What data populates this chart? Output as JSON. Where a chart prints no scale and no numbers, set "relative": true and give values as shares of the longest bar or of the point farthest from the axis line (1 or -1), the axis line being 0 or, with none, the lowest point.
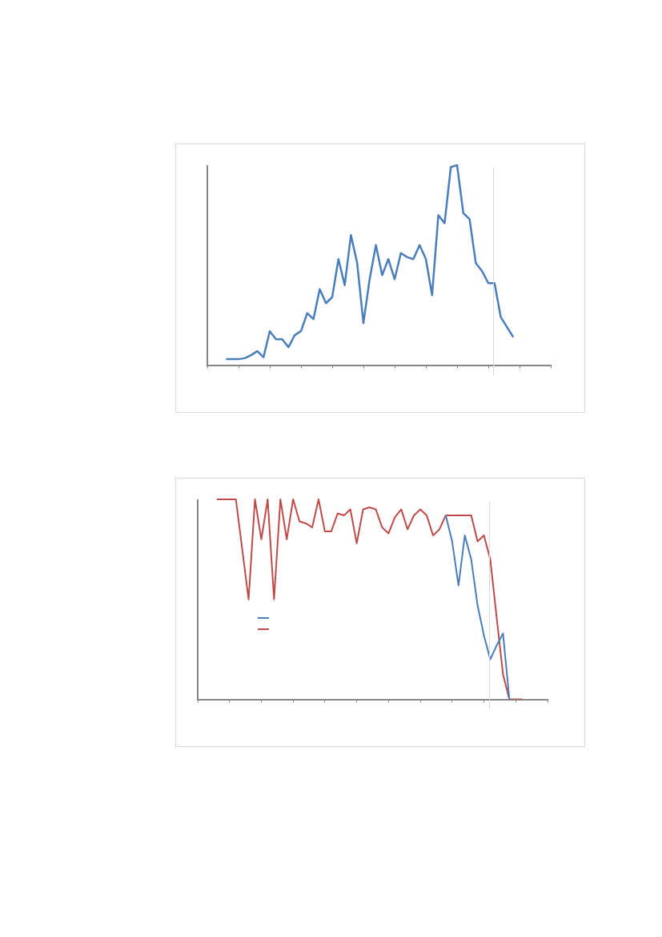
{
  "chart_data": [
    {
      "type": "line",
      "relative": true,
      "color": "#4a7ebb",
      "categories": [
        null,
        null,
        null,
        null,
        null,
        null,
        null,
        null,
        null,
        null,
        null,
        null,
        null,
        null,
        null,
        null,
        null,
        null,
        null,
        null,
        null,
        null,
        null,
        null,
        null,
        null,
        null,
        null,
        null,
        null,
        null,
        null,
        null,
        null,
        null,
        null,
        null,
        null,
        null,
        null,
        null,
        null,
        null,
        null,
        null,
        null,
        null,
        null,
        null,
        null,
        null,
        null,
        null,
        null,
        null,
        null
      ],
      "values": [
        null,
        null,
        null,
        0.03,
        0.03,
        0.03,
        0.035,
        0.05,
        0.07,
        0.04,
        0.17,
        0.13,
        0.13,
        0.09,
        0.15,
        0.17,
        0.26,
        0.23,
        0.38,
        0.31,
        0.34,
        0.53,
        0.4,
        0.65,
        0.51,
        0.21,
        0.43,
        0.6,
        0.45,
        0.53,
        0.43,
        0.56,
        0.54,
        0.53,
        0.6,
        0.53,
        0.35,
        0.75,
        0.71,
        0.99,
        1,
        0.76,
        0.73,
        0.51,
        0.47,
        0.41,
        0.41,
        0.24,
        0.19,
        0.14,
        null,
        null,
        null,
        null,
        null,
        null
      ]
    },
    {
      "type": "line",
      "relative": true,
      "categories": [
        null,
        null,
        null,
        null,
        null,
        null,
        null,
        null,
        null,
        null,
        null,
        null,
        null,
        null,
        null,
        null,
        null,
        null,
        null,
        null,
        null,
        null,
        null,
        null,
        null,
        null,
        null,
        null,
        null,
        null,
        null,
        null,
        null,
        null,
        null,
        null,
        null,
        null,
        null,
        null,
        null,
        null,
        null,
        null,
        null,
        null,
        null,
        null,
        null,
        null,
        null,
        null,
        null,
        null,
        null,
        null
      ],
      "series": [
        {
          "color": "#4a7ebb",
          "values": [
            null,
            null,
            null,
            null,
            null,
            null,
            null,
            null,
            null,
            null,
            null,
            null,
            null,
            null,
            null,
            null,
            null,
            null,
            null,
            null,
            null,
            null,
            null,
            null,
            null,
            null,
            null,
            null,
            null,
            null,
            null,
            null,
            null,
            null,
            null,
            null,
            null,
            null,
            null,
            0.92,
            0.79,
            0.57,
            0.82,
            0.7,
            0.47,
            0.32,
            0.2,
            0.27,
            0.33,
            0,
            null,
            null,
            null,
            null,
            null,
            null
          ]
        },
        {
          "color": "#be4b48",
          "values": [
            null,
            null,
            null,
            1,
            1,
            1,
            1,
            0.75,
            0.5,
            1,
            0.8,
            1,
            0.5,
            1,
            0.8,
            1,
            0.89,
            0.88,
            0.86,
            1,
            0.84,
            0.84,
            0.93,
            0.92,
            0.95,
            0.78,
            0.95,
            0.96,
            0.95,
            0.86,
            0.83,
            0.91,
            0.95,
            0.85,
            0.92,
            0.95,
            0.92,
            0.82,
            0.85,
            0.92,
            0.92,
            0.92,
            0.92,
            0.92,
            0.79,
            0.82,
            0.7,
            0.41,
            0.125,
            0,
            0,
            0,
            null,
            null,
            null,
            null
          ]
        }
      ]
    }
  ]
}
